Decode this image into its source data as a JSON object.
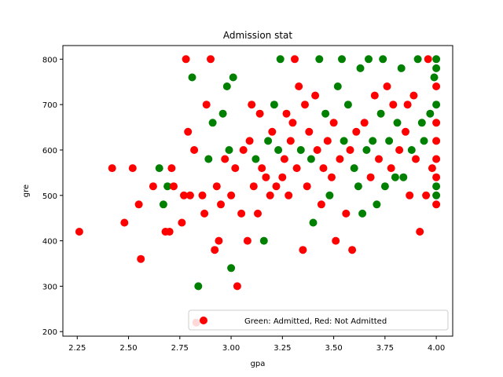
{
  "chart_data": {
    "type": "scatter",
    "title": "Admission stat",
    "xlabel": "gpa",
    "ylabel": "gre",
    "xlim": [
      2.18,
      4.08
    ],
    "ylim": [
      190,
      830
    ],
    "xticks": [
      2.25,
      2.5,
      2.75,
      3.0,
      3.25,
      3.5,
      3.75,
      4.0
    ],
    "xtick_labels": [
      "2.25",
      "2.50",
      "2.75",
      "3.00",
      "3.25",
      "3.50",
      "3.75",
      "4.00"
    ],
    "yticks": [
      200,
      300,
      400,
      500,
      600,
      700,
      800
    ],
    "ytick_labels": [
      "200",
      "300",
      "400",
      "500",
      "600",
      "700",
      "800"
    ],
    "legend": {
      "label": "Green: Admitted, Red: Not Admitted",
      "location": "lower-right"
    },
    "grid": false,
    "colors": {
      "admitted": "#008000",
      "not_admitted": "#ff0000"
    },
    "series": [
      {
        "name": "Green: Admitted, Red: Not Admitted",
        "points": [
          [
            2.26,
            420,
            "r"
          ],
          [
            2.42,
            560,
            "r"
          ],
          [
            2.48,
            440,
            "r"
          ],
          [
            2.52,
            560,
            "r"
          ],
          [
            2.55,
            480,
            "r"
          ],
          [
            2.56,
            360,
            "r"
          ],
          [
            2.62,
            520,
            "r"
          ],
          [
            2.65,
            560,
            "g"
          ],
          [
            2.67,
            480,
            "g"
          ],
          [
            2.68,
            420,
            "r"
          ],
          [
            2.69,
            520,
            "g"
          ],
          [
            2.7,
            420,
            "r"
          ],
          [
            2.71,
            560,
            "r"
          ],
          [
            2.72,
            520,
            "r"
          ],
          [
            2.76,
            440,
            "r"
          ],
          [
            2.77,
            500,
            "r"
          ],
          [
            2.78,
            800,
            "r"
          ],
          [
            2.79,
            640,
            "r"
          ],
          [
            2.8,
            500,
            "r"
          ],
          [
            2.81,
            760,
            "g"
          ],
          [
            2.82,
            600,
            "r"
          ],
          [
            2.84,
            300,
            "g"
          ],
          [
            2.86,
            500,
            "r"
          ],
          [
            2.87,
            460,
            "r"
          ],
          [
            2.88,
            700,
            "r"
          ],
          [
            2.89,
            580,
            "g"
          ],
          [
            2.9,
            800,
            "r"
          ],
          [
            2.91,
            660,
            "g"
          ],
          [
            2.92,
            380,
            "r"
          ],
          [
            2.93,
            520,
            "r"
          ],
          [
            2.94,
            400,
            "r"
          ],
          [
            2.95,
            480,
            "r"
          ],
          [
            2.96,
            680,
            "g"
          ],
          [
            2.97,
            580,
            "r"
          ],
          [
            2.98,
            740,
            "g"
          ],
          [
            2.99,
            600,
            "g"
          ],
          [
            3.0,
            500,
            "r"
          ],
          [
            3.0,
            340,
            "g"
          ],
          [
            3.01,
            760,
            "g"
          ],
          [
            3.02,
            560,
            "r"
          ],
          [
            3.03,
            300,
            "r"
          ],
          [
            3.05,
            460,
            "r"
          ],
          [
            3.06,
            600,
            "r"
          ],
          [
            3.08,
            400,
            "r"
          ],
          [
            3.09,
            620,
            "r"
          ],
          [
            3.1,
            700,
            "r"
          ],
          [
            3.11,
            520,
            "r"
          ],
          [
            3.12,
            580,
            "g"
          ],
          [
            3.13,
            460,
            "r"
          ],
          [
            3.14,
            680,
            "r"
          ],
          [
            3.15,
            560,
            "r"
          ],
          [
            3.16,
            400,
            "g"
          ],
          [
            3.17,
            540,
            "r"
          ],
          [
            3.18,
            620,
            "g"
          ],
          [
            3.19,
            500,
            "r"
          ],
          [
            3.2,
            640,
            "r"
          ],
          [
            3.21,
            700,
            "g"
          ],
          [
            3.22,
            520,
            "r"
          ],
          [
            3.23,
            600,
            "g"
          ],
          [
            3.24,
            800,
            "g"
          ],
          [
            3.25,
            540,
            "r"
          ],
          [
            3.26,
            580,
            "r"
          ],
          [
            3.27,
            680,
            "r"
          ],
          [
            3.28,
            500,
            "r"
          ],
          [
            3.29,
            620,
            "r"
          ],
          [
            3.3,
            660,
            "r"
          ],
          [
            3.31,
            800,
            "r"
          ],
          [
            3.32,
            560,
            "r"
          ],
          [
            3.33,
            740,
            "r"
          ],
          [
            3.34,
            600,
            "g"
          ],
          [
            3.35,
            380,
            "r"
          ],
          [
            3.36,
            700,
            "r"
          ],
          [
            3.37,
            520,
            "r"
          ],
          [
            3.38,
            640,
            "r"
          ],
          [
            3.39,
            580,
            "g"
          ],
          [
            3.4,
            440,
            "g"
          ],
          [
            3.41,
            720,
            "r"
          ],
          [
            3.42,
            600,
            "r"
          ],
          [
            3.43,
            800,
            "g"
          ],
          [
            3.44,
            480,
            "r"
          ],
          [
            3.45,
            560,
            "r"
          ],
          [
            3.46,
            680,
            "g"
          ],
          [
            3.47,
            620,
            "r"
          ],
          [
            3.48,
            500,
            "g"
          ],
          [
            3.49,
            540,
            "r"
          ],
          [
            3.5,
            660,
            "r"
          ],
          [
            3.51,
            400,
            "r"
          ],
          [
            3.52,
            740,
            "g"
          ],
          [
            3.53,
            580,
            "r"
          ],
          [
            3.54,
            800,
            "g"
          ],
          [
            3.55,
            620,
            "g"
          ],
          [
            3.56,
            460,
            "r"
          ],
          [
            3.57,
            700,
            "g"
          ],
          [
            3.58,
            600,
            "r"
          ],
          [
            3.59,
            380,
            "r"
          ],
          [
            3.6,
            560,
            "g"
          ],
          [
            3.61,
            640,
            "r"
          ],
          [
            3.62,
            520,
            "g"
          ],
          [
            3.63,
            780,
            "g"
          ],
          [
            3.64,
            460,
            "g"
          ],
          [
            3.65,
            660,
            "r"
          ],
          [
            3.66,
            600,
            "g"
          ],
          [
            3.67,
            800,
            "g"
          ],
          [
            3.68,
            540,
            "r"
          ],
          [
            3.69,
            620,
            "g"
          ],
          [
            3.7,
            720,
            "r"
          ],
          [
            3.71,
            480,
            "g"
          ],
          [
            3.72,
            580,
            "r"
          ],
          [
            3.73,
            680,
            "g"
          ],
          [
            3.74,
            800,
            "g"
          ],
          [
            3.75,
            520,
            "g"
          ],
          [
            3.76,
            740,
            "r"
          ],
          [
            3.77,
            620,
            "g"
          ],
          [
            3.78,
            560,
            "r"
          ],
          [
            3.79,
            700,
            "r"
          ],
          [
            3.8,
            540,
            "g"
          ],
          [
            3.81,
            660,
            "g"
          ],
          [
            3.82,
            600,
            "r"
          ],
          [
            3.83,
            780,
            "g"
          ],
          [
            3.84,
            540,
            "g"
          ],
          [
            3.85,
            640,
            "r"
          ],
          [
            3.86,
            700,
            "r"
          ],
          [
            3.87,
            500,
            "r"
          ],
          [
            3.88,
            600,
            "g"
          ],
          [
            3.89,
            720,
            "r"
          ],
          [
            3.9,
            580,
            "r"
          ],
          [
            3.91,
            800,
            "g"
          ],
          [
            3.92,
            420,
            "r"
          ],
          [
            3.93,
            660,
            "g"
          ],
          [
            3.94,
            620,
            "g"
          ],
          [
            3.95,
            500,
            "r"
          ],
          [
            3.96,
            800,
            "r"
          ],
          [
            3.97,
            680,
            "g"
          ],
          [
            3.98,
            560,
            "r"
          ],
          [
            3.99,
            760,
            "g"
          ],
          [
            4.0,
            800,
            "g"
          ],
          [
            4.0,
            780,
            "g"
          ],
          [
            4.0,
            740,
            "r"
          ],
          [
            4.0,
            700,
            "g"
          ],
          [
            4.0,
            660,
            "r"
          ],
          [
            4.0,
            620,
            "r"
          ],
          [
            4.0,
            580,
            "r"
          ],
          [
            4.0,
            540,
            "r"
          ],
          [
            4.0,
            520,
            "g"
          ],
          [
            4.0,
            500,
            "g"
          ],
          [
            4.0,
            480,
            "r"
          ],
          [
            2.83,
            220,
            "r"
          ]
        ]
      }
    ]
  }
}
